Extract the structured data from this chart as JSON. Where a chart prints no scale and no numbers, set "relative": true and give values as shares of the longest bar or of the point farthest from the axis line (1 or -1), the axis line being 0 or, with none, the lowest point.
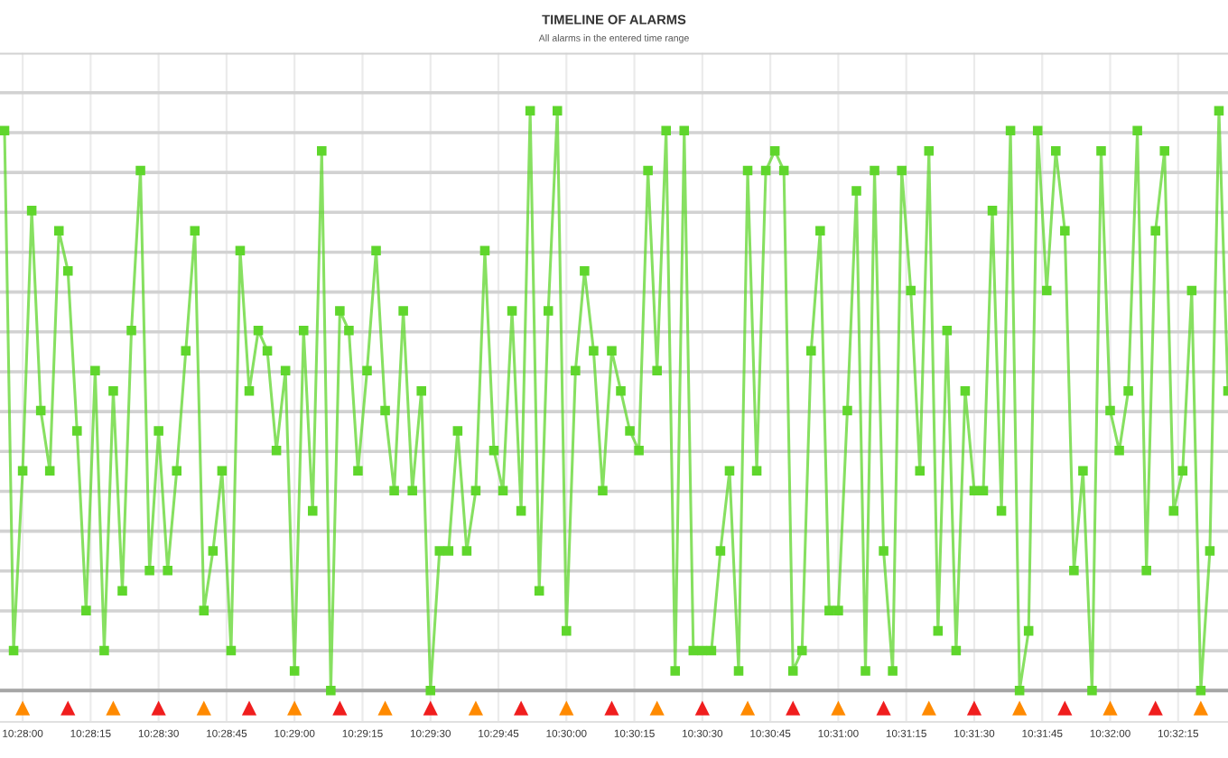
{
  "chart_data": {
    "type": "line",
    "title": "TIMELINE OF ALARMS",
    "subtitle": "All alarms in the entered time range",
    "relative": true,
    "grid": true,
    "xlim": [
      10.465278,
      10.540556
    ],
    "xticks": [
      {
        "value": 10.466667,
        "label": "10:28:00"
      },
      {
        "value": 10.470833,
        "label": "10:28:15"
      },
      {
        "value": 10.475,
        "label": "10:28:30"
      },
      {
        "value": 10.479167,
        "label": "10:28:45"
      },
      {
        "value": 10.483333,
        "label": "10:29:00"
      },
      {
        "value": 10.4875,
        "label": "10:29:15"
      },
      {
        "value": 10.491667,
        "label": "10:29:30"
      },
      {
        "value": 10.495833,
        "label": "10:29:45"
      },
      {
        "value": 10.5,
        "label": "10:30:00"
      },
      {
        "value": 10.504167,
        "label": "10:30:15"
      },
      {
        "value": 10.508333,
        "label": "10:30:30"
      },
      {
        "value": 10.5125,
        "label": "10:30:45"
      },
      {
        "value": 10.516667,
        "label": "10:31:00"
      },
      {
        "value": 10.520833,
        "label": "10:31:15"
      },
      {
        "value": 10.525,
        "label": "10:31:30"
      },
      {
        "value": 10.529167,
        "label": "10:31:45"
      },
      {
        "value": 10.533333,
        "label": "10:32:00"
      },
      {
        "value": 10.5375,
        "label": "10:32:15"
      }
    ],
    "series": [
      {
        "color": "#5fd62c",
        "marker": "square",
        "x": [
          10.465556,
          10.466111,
          10.466667,
          10.467222,
          10.467778,
          10.468333,
          10.468889,
          10.469444,
          10.47,
          10.470556,
          10.471111,
          10.471667,
          10.472222,
          10.472778,
          10.473333,
          10.473889,
          10.474444,
          10.475,
          10.475556,
          10.476111,
          10.476667,
          10.477222,
          10.477778,
          10.478333,
          10.478889,
          10.479444,
          10.48,
          10.480556,
          10.481111,
          10.481667,
          10.482222,
          10.482778,
          10.483333,
          10.483889,
          10.484444,
          10.485,
          10.485556,
          10.486111,
          10.486667,
          10.487222,
          10.487778,
          10.488333,
          10.488889,
          10.489444,
          10.49,
          10.490556,
          10.491111,
          10.491667,
          10.492222,
          10.492778,
          10.493333,
          10.493889,
          10.494444,
          10.495,
          10.495556,
          10.496111,
          10.496667,
          10.497222,
          10.497778,
          10.498333,
          10.498889,
          10.499444,
          10.5,
          10.500556,
          10.501111,
          10.501667,
          10.502222,
          10.502778,
          10.503333,
          10.503889,
          10.504444,
          10.505,
          10.505556,
          10.506111,
          10.506667,
          10.507222,
          10.507778,
          10.508333,
          10.508889,
          10.509444,
          10.51,
          10.510556,
          10.511111,
          10.511667,
          10.512222,
          10.512778,
          10.513333,
          10.513889,
          10.514444,
          10.515,
          10.515556,
          10.516111,
          10.516667,
          10.517222,
          10.517778,
          10.518333,
          10.518889,
          10.519444,
          10.52,
          10.520556,
          10.521111,
          10.521667,
          10.522222,
          10.522778,
          10.523333,
          10.523889,
          10.524444,
          10.525,
          10.525556,
          10.526111,
          10.526667,
          10.527222,
          10.527778,
          10.528333,
          10.528889,
          10.529444,
          10.53,
          10.530556,
          10.531111,
          10.531667,
          10.532222,
          10.532778,
          10.533333,
          10.533889,
          10.534444,
          10.535,
          10.535556,
          10.536111,
          10.536667,
          10.537222,
          10.537778,
          10.538333,
          10.538889,
          10.539444,
          10.54,
          10.540556
        ],
        "values": [
          0.966,
          0.069,
          0.379,
          0.828,
          0.483,
          0.379,
          0.793,
          0.724,
          0.448,
          0.138,
          0.552,
          0.069,
          0.517,
          0.172,
          0.621,
          0.897,
          0.207,
          0.448,
          0.207,
          0.379,
          0.586,
          0.793,
          0.138,
          0.241,
          0.379,
          0.069,
          0.759,
          0.517,
          0.621,
          0.586,
          0.414,
          0.552,
          0.034,
          0.621,
          0.31,
          0.931,
          0,
          0.655,
          0.621,
          0.379,
          0.552,
          0.759,
          0.483,
          0.345,
          0.655,
          0.345,
          0.517,
          0,
          0.241,
          0.241,
          0.448,
          0.241,
          0.345,
          0.759,
          0.414,
          0.345,
          0.655,
          0.31,
          1,
          0.172,
          0.655,
          1,
          0.103,
          0.552,
          0.724,
          0.586,
          0.345,
          0.586,
          0.517,
          0.448,
          0.414,
          0.897,
          0.552,
          0.966,
          0.034,
          0.966,
          0.069,
          0.069,
          0.069,
          0.241,
          0.379,
          0.034,
          0.897,
          0.379,
          0.897,
          0.931,
          0.897,
          0.034,
          0.069,
          0.586,
          0.793,
          0.138,
          0.138,
          0.483,
          0.862,
          0.034,
          0.897,
          0.241,
          0.034,
          0.897,
          0.69,
          0.379,
          0.931,
          0.103,
          0.621,
          0.069,
          0.517,
          0.345,
          0.345,
          0.828,
          0.31,
          0.966,
          0,
          0.103,
          0.966,
          0.69,
          0.931,
          0.793,
          0.207,
          0.379,
          0,
          0.931,
          0.483,
          0.414,
          0.517,
          0.966,
          0.207,
          0.793,
          0.931,
          0.31,
          0.379,
          0.69,
          0,
          0.241,
          1,
          0.517
        ]
      },
      {
        "type": "scatter",
        "marker": "triangle",
        "x": [
          10.466667,
          10.469444,
          10.472222,
          10.475,
          10.477778,
          10.480556,
          10.483333,
          10.486111,
          10.488889,
          10.491667,
          10.494444,
          10.497222,
          10.5,
          10.502778,
          10.505556,
          10.508333,
          10.511111,
          10.513889,
          10.516667,
          10.519444,
          10.522222,
          10.525,
          10.527778,
          10.530556,
          10.533333,
          10.536111,
          10.538889
        ],
        "values": [
          -0.03,
          -0.03,
          -0.03,
          -0.03,
          -0.03,
          -0.03,
          -0.03,
          -0.03,
          -0.03,
          -0.03,
          -0.03,
          -0.03,
          -0.03,
          -0.03,
          -0.03,
          -0.03,
          -0.03,
          -0.03,
          -0.03,
          -0.03,
          -0.03,
          -0.03,
          -0.03,
          -0.03,
          -0.03,
          -0.03,
          -0.03
        ],
        "colors": [
          "#ff8a00",
          "#f01e1e",
          "#ff8a00",
          "#f01e1e",
          "#ff8a00",
          "#f01e1e",
          "#ff8a00",
          "#f01e1e",
          "#ff8a00",
          "#f01e1e",
          "#ff8a00",
          "#f01e1e",
          "#ff8a00",
          "#f01e1e",
          "#ff8a00",
          "#f01e1e",
          "#ff8a00",
          "#f01e1e",
          "#ff8a00",
          "#f01e1e",
          "#ff8a00",
          "#f01e1e",
          "#ff8a00",
          "#f01e1e",
          "#ff8a00",
          "#f01e1e",
          "#ff8a00"
        ]
      }
    ]
  }
}
